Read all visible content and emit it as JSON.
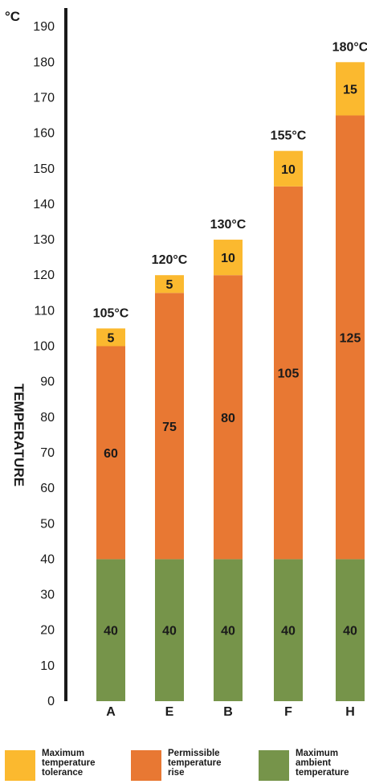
{
  "chart_data": {
    "type": "bar",
    "stacked": true,
    "unit": "°C",
    "ylabel": "TEMPERATURE",
    "ylim": [
      0,
      190
    ],
    "yticks": [
      0,
      10,
      20,
      30,
      40,
      50,
      60,
      70,
      80,
      90,
      100,
      110,
      120,
      130,
      140,
      150,
      160,
      170,
      180,
      190
    ],
    "categories": [
      "A",
      "E",
      "B",
      "F",
      "H"
    ],
    "totals": [
      "105°C",
      "120°C",
      "130°C",
      "155°C",
      "180°C"
    ],
    "series": [
      {
        "name": "Maximum\nambient\ntemperature",
        "color": "#76944a",
        "values": [
          40,
          40,
          40,
          40,
          40
        ]
      },
      {
        "name": "Permissible\ntemperature\nrise",
        "color": "#e87833",
        "values": [
          60,
          75,
          80,
          105,
          125
        ]
      },
      {
        "name": "Maximum\ntemperature\ntolerance",
        "color": "#fbb92f",
        "values": [
          5,
          5,
          10,
          10,
          15
        ]
      }
    ],
    "legend_order": [
      2,
      1,
      0
    ],
    "grid": false
  }
}
